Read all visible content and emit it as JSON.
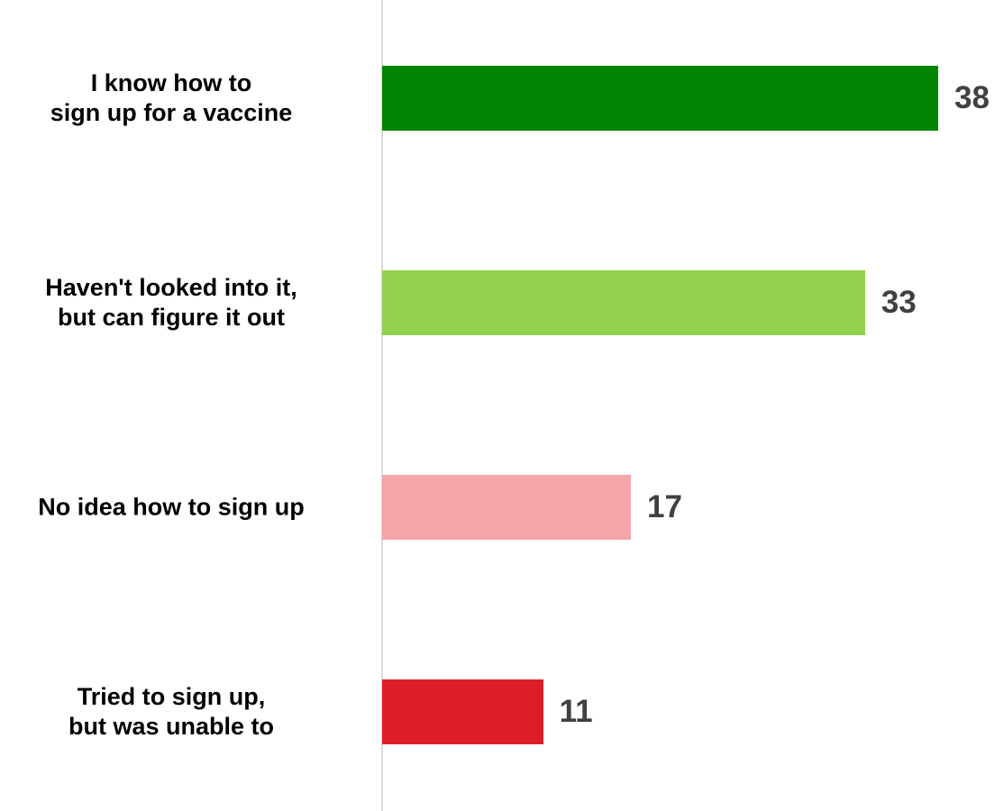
{
  "chart_data": {
    "type": "bar",
    "orientation": "horizontal",
    "categories": [
      "I know how to\nsign up for a vaccine",
      "Haven't looked into it,\nbut can figure it out",
      "No idea how to sign up",
      "Tried to sign up,\nbut was unable to"
    ],
    "values": [
      38,
      33,
      17,
      11
    ],
    "colors": [
      "#038503",
      "#92d050",
      "#f4a5a8",
      "#dc1f26"
    ]
  }
}
